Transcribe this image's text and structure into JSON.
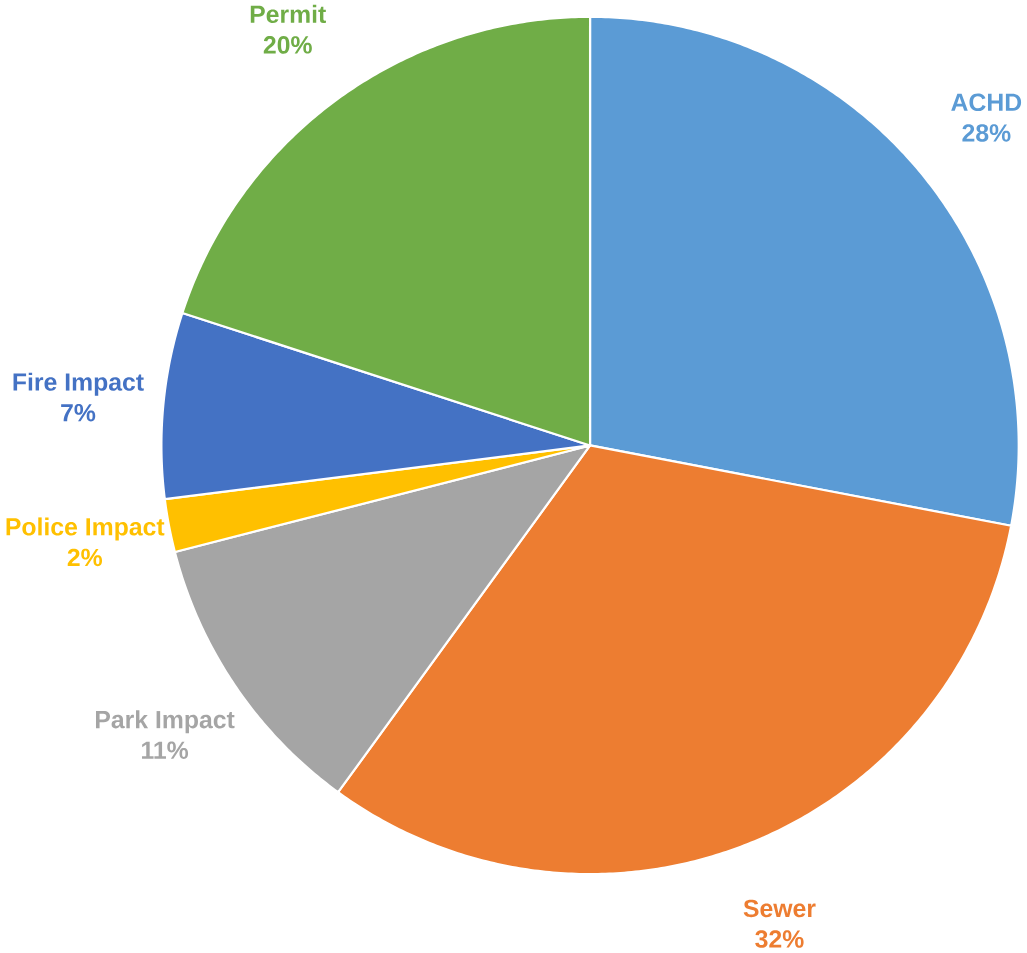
{
  "chart_data": {
    "type": "pie",
    "categories": [
      "ACHD",
      "Sewer",
      "Park Impact",
      "Police Impact",
      "Fire Impact",
      "Permit"
    ],
    "values": [
      28,
      32,
      11,
      2,
      7,
      20
    ],
    "value_labels": [
      "28%",
      "32%",
      "11%",
      "2%",
      "7%",
      "20%"
    ],
    "colors": [
      "#5b9bd5",
      "#ed7d31",
      "#a5a5a5",
      "#ffc000",
      "#4472c4",
      "#70ad47"
    ]
  }
}
